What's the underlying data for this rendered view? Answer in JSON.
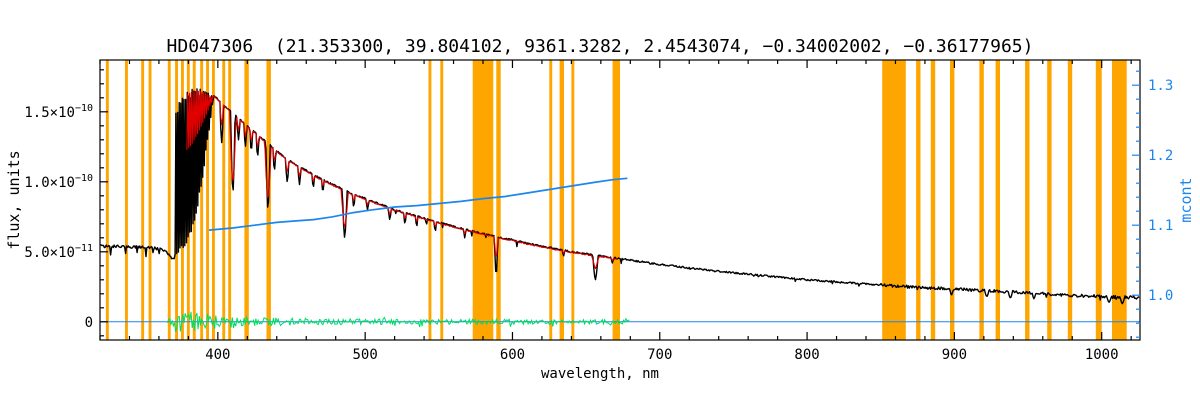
{
  "chart_data": {
    "type": "line",
    "title": "HD047306  (21.353300, 39.804102, 9361.3282, 2.4543074, −0.34002002, −0.36177965)",
    "xlabel": "wavelength, nm",
    "ylabel_left": "flux, units",
    "ylabel_right": "mcont",
    "x_range_nm": [
      320,
      1026
    ],
    "flux_axis": {
      "unit": "1e-10",
      "range": [
        -0.13,
        1.87
      ],
      "major_ticks": [
        {
          "value": 0.0,
          "label": "0"
        },
        {
          "value": 0.5,
          "label": "5.0×10^−11"
        },
        {
          "value": 1.0,
          "label": "1.0×10^−10"
        },
        {
          "value": 1.5,
          "label": "1.5×10^−10"
        }
      ],
      "minor_tick_step": 0.1
    },
    "x_axis": {
      "major_ticks": [
        400,
        500,
        600,
        700,
        800,
        900,
        1000
      ],
      "minor_tick_step": 20
    },
    "mcont_axis": {
      "range": [
        0.936,
        1.336
      ],
      "major_ticks": [
        1.0,
        1.1,
        1.2,
        1.3
      ],
      "minor_tick_step": 0.02
    },
    "colors": {
      "observed": "#000000",
      "model": "#E00000",
      "mcont": "#1C86EE",
      "residual": "#00DC5F",
      "mask": "#FFA500",
      "zero_line": "#1C86EE",
      "frame": "#000000"
    },
    "masked_bands_nm": [
      [
        324,
        326
      ],
      [
        337,
        339
      ],
      [
        348,
        350
      ],
      [
        353,
        355
      ],
      [
        366,
        368
      ],
      [
        371,
        373
      ],
      [
        375,
        377
      ],
      [
        379,
        381
      ],
      [
        383,
        385
      ],
      [
        388,
        390
      ],
      [
        392,
        394
      ],
      [
        396,
        398
      ],
      [
        403,
        405
      ],
      [
        407,
        409
      ],
      [
        418,
        421
      ],
      [
        433,
        436
      ],
      [
        543,
        545
      ],
      [
        551,
        553
      ],
      [
        573,
        587
      ],
      [
        589,
        592
      ],
      [
        625,
        627
      ],
      [
        632,
        635
      ],
      [
        640,
        642
      ],
      [
        668,
        673
      ],
      [
        851,
        867
      ],
      [
        874,
        877
      ],
      [
        884,
        887
      ],
      [
        897,
        900
      ],
      [
        917,
        920
      ],
      [
        928,
        931
      ],
      [
        948,
        951
      ],
      [
        963,
        966
      ],
      [
        977,
        980
      ],
      [
        996,
        1000
      ],
      [
        1007,
        1017
      ]
    ],
    "observed_continuum": [
      [
        320,
        0.54
      ],
      [
        345,
        0.535
      ],
      [
        358,
        0.525
      ],
      [
        364,
        0.51
      ],
      [
        367,
        0.48
      ],
      [
        369,
        0.45
      ],
      [
        371,
        0.44
      ]
    ],
    "balmer_jump_region": {
      "nm_span": [
        371,
        397
      ],
      "top_envelope": [
        [
          371,
          1.5
        ],
        [
          375,
          1.61
        ],
        [
          380,
          1.65
        ],
        [
          385,
          1.67
        ],
        [
          390,
          1.66
        ],
        [
          397,
          1.62
        ]
      ],
      "bottom_envelope": [
        [
          371,
          0.44
        ],
        [
          374,
          0.48
        ],
        [
          378,
          0.53
        ],
        [
          382,
          0.62
        ],
        [
          386,
          0.8
        ],
        [
          390,
          1.05
        ],
        [
          394,
          1.35
        ],
        [
          397,
          1.55
        ]
      ]
    },
    "main_continuum": [
      [
        397,
        1.62
      ],
      [
        400,
        1.59
      ],
      [
        405,
        1.54
      ],
      [
        410,
        1.49
      ],
      [
        420,
        1.4
      ],
      [
        430,
        1.31
      ],
      [
        440,
        1.22
      ],
      [
        450,
        1.14
      ],
      [
        460,
        1.08
      ],
      [
        470,
        1.02
      ],
      [
        480,
        0.97
      ],
      [
        490,
        0.92
      ],
      [
        500,
        0.88
      ],
      [
        510,
        0.84
      ],
      [
        520,
        0.8
      ],
      [
        530,
        0.77
      ],
      [
        540,
        0.74
      ],
      [
        550,
        0.71
      ],
      [
        560,
        0.68
      ],
      [
        570,
        0.655
      ],
      [
        580,
        0.63
      ],
      [
        590,
        0.605
      ],
      [
        600,
        0.585
      ],
      [
        610,
        0.56
      ],
      [
        620,
        0.54
      ],
      [
        630,
        0.52
      ],
      [
        640,
        0.5
      ],
      [
        650,
        0.485
      ],
      [
        660,
        0.47
      ],
      [
        670,
        0.455
      ],
      [
        680,
        0.44
      ],
      [
        690,
        0.425
      ],
      [
        700,
        0.41
      ],
      [
        720,
        0.385
      ],
      [
        740,
        0.36
      ],
      [
        760,
        0.34
      ],
      [
        780,
        0.32
      ],
      [
        800,
        0.3
      ],
      [
        820,
        0.285
      ],
      [
        840,
        0.27
      ],
      [
        860,
        0.255
      ],
      [
        880,
        0.245
      ],
      [
        900,
        0.235
      ],
      [
        920,
        0.222
      ],
      [
        940,
        0.212
      ],
      [
        960,
        0.2
      ],
      [
        980,
        0.19
      ],
      [
        1000,
        0.18
      ],
      [
        1026,
        0.172
      ]
    ],
    "absorption_lines": [
      {
        "nm": 402.6,
        "flux": 1.28,
        "width": 1.2
      },
      {
        "nm": 410.2,
        "flux": 0.92,
        "width": 1.5
      },
      {
        "nm": 414.0,
        "flux": 1.3,
        "width": 1.0
      },
      {
        "nm": 418.7,
        "flux": 1.25,
        "width": 1.0
      },
      {
        "nm": 422.7,
        "flux": 1.22,
        "width": 1.0
      },
      {
        "nm": 427.0,
        "flux": 1.18,
        "width": 1.0
      },
      {
        "nm": 434.0,
        "flux": 0.8,
        "width": 1.5
      },
      {
        "nm": 438.4,
        "flux": 1.08,
        "width": 1.0
      },
      {
        "nm": 447.1,
        "flux": 1.0,
        "width": 1.2
      },
      {
        "nm": 455.4,
        "flux": 0.98,
        "width": 1.0
      },
      {
        "nm": 464.8,
        "flux": 0.96,
        "width": 0.9
      },
      {
        "nm": 471.3,
        "flux": 0.93,
        "width": 0.9
      },
      {
        "nm": 486.1,
        "flux": 0.6,
        "width": 1.6
      },
      {
        "nm": 492.2,
        "flux": 0.82,
        "width": 0.9
      },
      {
        "nm": 501.6,
        "flux": 0.8,
        "width": 0.9
      },
      {
        "nm": 516.7,
        "flux": 0.73,
        "width": 1.0
      },
      {
        "nm": 527.0,
        "flux": 0.7,
        "width": 0.9
      },
      {
        "nm": 535.0,
        "flux": 0.68,
        "width": 0.8
      },
      {
        "nm": 547.6,
        "flux": 0.645,
        "width": 0.8
      },
      {
        "nm": 567.6,
        "flux": 0.6,
        "width": 0.8
      },
      {
        "nm": 588.9,
        "flux": 0.33,
        "width": 1.2
      },
      {
        "nm": 634.7,
        "flux": 0.47,
        "width": 0.8
      },
      {
        "nm": 656.3,
        "flux": 0.3,
        "width": 1.8
      },
      {
        "nm": 667.8,
        "flux": 0.42,
        "width": 0.9
      },
      {
        "nm": 898.0,
        "flux": 0.19,
        "width": 1.2
      },
      {
        "nm": 922.0,
        "flux": 0.18,
        "width": 1.4
      },
      {
        "nm": 938.0,
        "flux": 0.17,
        "width": 1.4
      },
      {
        "nm": 954.0,
        "flux": 0.165,
        "width": 1.2
      },
      {
        "nm": 1005.0,
        "flux": 0.14,
        "width": 1.5
      },
      {
        "nm": 1014.0,
        "flux": 0.13,
        "width": 1.5
      }
    ],
    "model": {
      "nm_span": [
        379,
        672
      ],
      "lines": [
        {
          "nm": 410.2,
          "flux": 1.0,
          "width": 2.2
        },
        {
          "nm": 434.0,
          "flux": 0.88,
          "width": 2.2
        },
        {
          "nm": 486.1,
          "flux": 0.68,
          "width": 2.4
        },
        {
          "nm": 656.3,
          "flux": 0.4,
          "width": 2.6
        }
      ]
    },
    "mcont_curve": [
      [
        394,
        1.093
      ],
      [
        410,
        1.096
      ],
      [
        425,
        1.1
      ],
      [
        440,
        1.104
      ],
      [
        452,
        1.106
      ],
      [
        465,
        1.108
      ],
      [
        478,
        1.112
      ],
      [
        492,
        1.118
      ],
      [
        505,
        1.122
      ],
      [
        520,
        1.126
      ],
      [
        535,
        1.128
      ],
      [
        550,
        1.131
      ],
      [
        565,
        1.134
      ],
      [
        580,
        1.138
      ],
      [
        595,
        1.141
      ],
      [
        610,
        1.146
      ],
      [
        625,
        1.151
      ],
      [
        640,
        1.156
      ],
      [
        655,
        1.161
      ],
      [
        668,
        1.165
      ],
      [
        678,
        1.167
      ]
    ],
    "residuals": {
      "nm_span": [
        365,
        680
      ],
      "zero_flux": 0,
      "amplitude_envelope": [
        [
          365,
          0.015
        ],
        [
          372,
          0.07
        ],
        [
          382,
          0.075
        ],
        [
          395,
          0.055
        ],
        [
          410,
          0.045
        ],
        [
          430,
          0.03
        ],
        [
          460,
          0.025
        ],
        [
          500,
          0.02
        ],
        [
          560,
          0.018
        ],
        [
          620,
          0.018
        ],
        [
          680,
          0.016
        ]
      ]
    },
    "zero_line_span_nm": [
      320,
      1026
    ]
  }
}
